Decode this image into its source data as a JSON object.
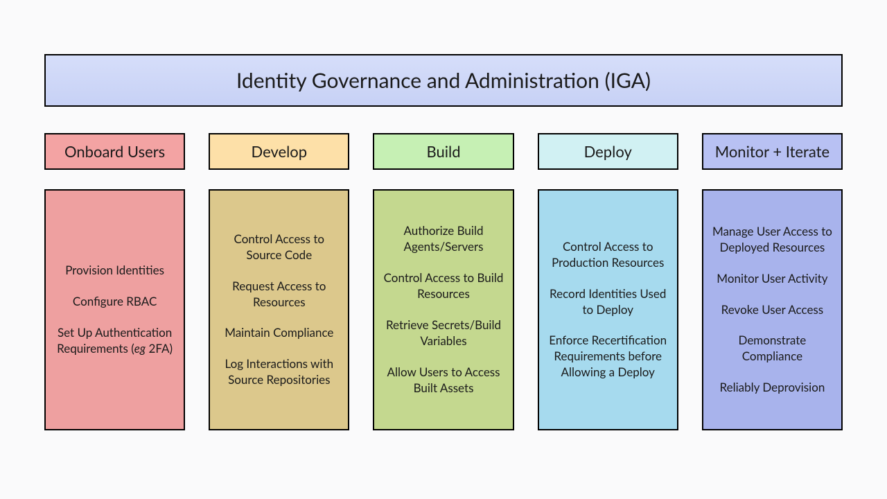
{
  "banner": {
    "title": "Identity Governance and Administration (IGA)",
    "bg": "linear-gradient(180deg,#d6defa 0%,#c7d1f5 100%)"
  },
  "columns": [
    {
      "phase": "Onboard Users",
      "phase_bg": "#f3a3a3",
      "details_bg": "#eea0a0",
      "items": [
        "Provision Identities",
        "Configure RBAC",
        "Set Up Authentication Requirements (<em>eg</em> 2FA)"
      ]
    },
    {
      "phase": "Develop",
      "phase_bg": "#fde0a8",
      "details_bg": "#dcc88c",
      "items": [
        "Control Access to Source Code",
        "Request Access to Resources",
        "Maintain Compliance",
        "Log Interactions with Source Repositories"
      ]
    },
    {
      "phase": "Build",
      "phase_bg": "#c6f0b4",
      "details_bg": "#c4d88f",
      "items": [
        "Authorize Build Agents/Servers",
        "Control Access to Build Resources",
        "Retrieve Secrets/Build Variables",
        "Allow Users to Access Built Assets"
      ]
    },
    {
      "phase": "Deploy",
      "phase_bg": "#d1f1f3",
      "details_bg": "#a6daee",
      "items": [
        "Control Access to Production Resources",
        "Record Identities Used to Deploy",
        "Enforce Recertification Requirements before Allowing a Deploy"
      ]
    },
    {
      "phase": "Monitor + Iterate",
      "phase_bg": "#b8c1f3",
      "details_bg": "#a8b3ec",
      "items": [
        "Manage User Access to Deployed Resources",
        "Monitor User Activity",
        "Revoke User Access",
        "Demonstrate Compliance",
        "Reliably Deprovision"
      ]
    }
  ]
}
